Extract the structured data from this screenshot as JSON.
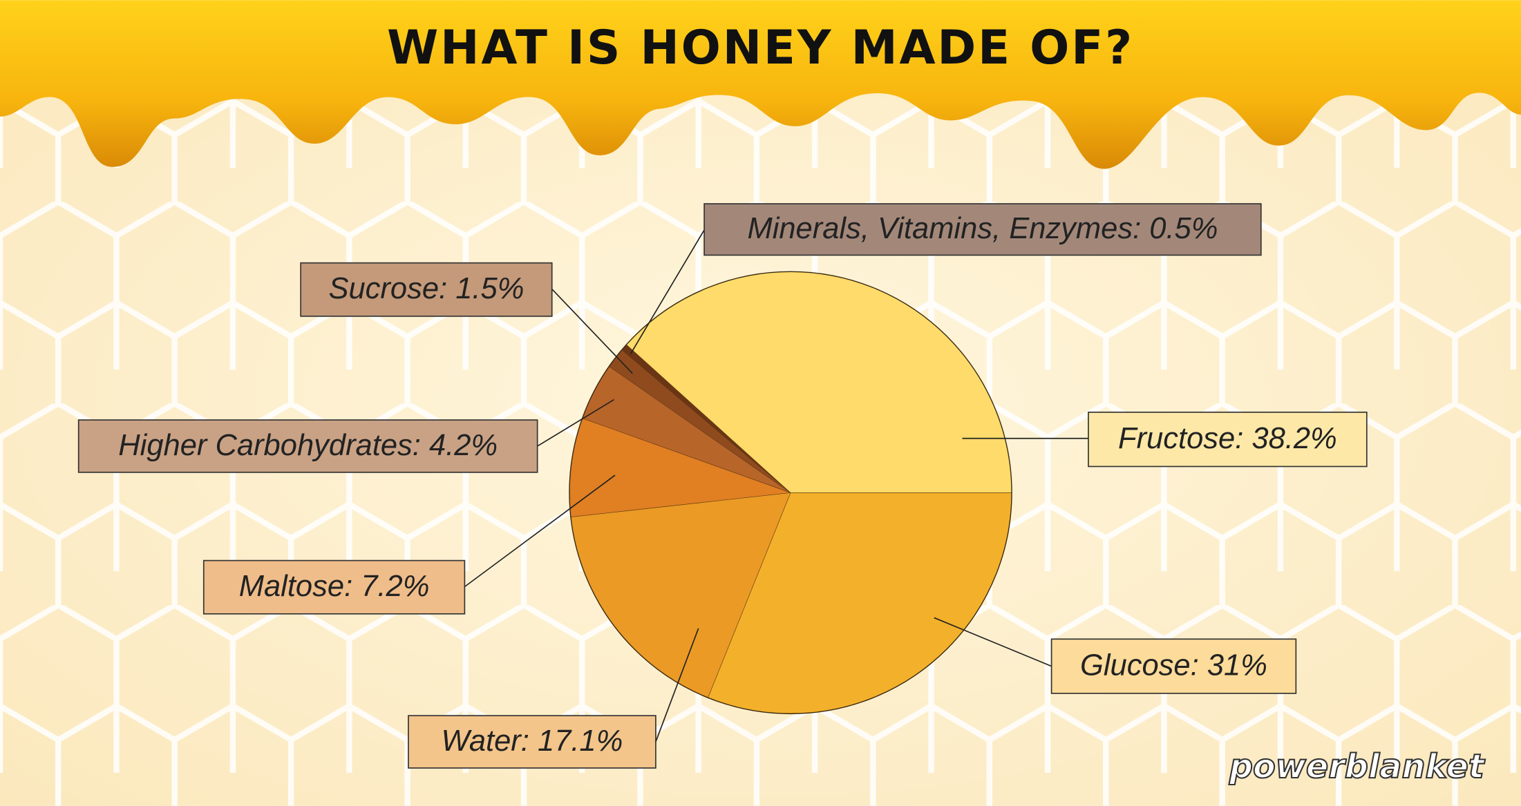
{
  "chart_data": {
    "type": "pie",
    "title": "WHAT IS HONEY MADE OF?",
    "values": [
      38.2,
      31,
      17.1,
      7.2,
      4.2,
      1.5,
      0.5
    ],
    "value_labels": [
      "Fructose: 38.2%",
      "Glucose: 31%",
      "Water: 17.1%",
      "Maltose: 7.2%",
      "Higher Carbohydrates: 4.2%",
      "Sucrose: 1.5%",
      "Minerals, Vitamins, Enzymes: 0.5%"
    ],
    "colors": [
      "#fedb6a",
      "#f3b02b",
      "#eb9a25",
      "#e17f23",
      "#b8652a",
      "#8f4b1e",
      "#6b3515"
    ],
    "brand": "powerblanket"
  }
}
